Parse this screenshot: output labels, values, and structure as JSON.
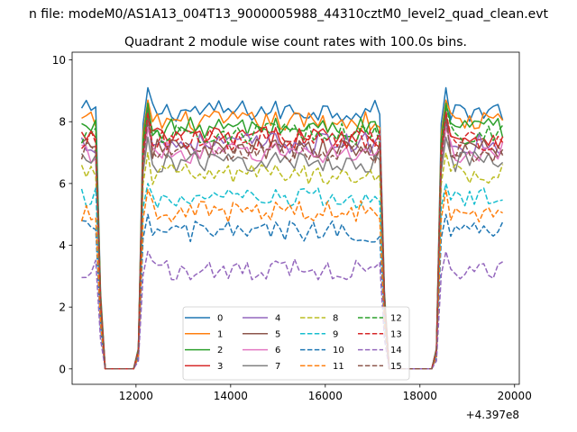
{
  "figure": {
    "suptitle": "n file: modeM0/AS1A13_004T13_9000005988_44310cztM0_level2_quad_clean.evt"
  },
  "chart_data": {
    "type": "line",
    "title": "Quadrant 2 module wise count rates with 100.0s bins.",
    "xlabel": "",
    "ylabel": "",
    "x_offset_label": "+4.397e8",
    "xlim": [
      10650,
      20100
    ],
    "ylim": [
      -0.5,
      10.25
    ],
    "xticks": [
      12000,
      14000,
      16000,
      18000,
      20000
    ],
    "xtick_labels": [
      "12000",
      "14000",
      "16000",
      "18000",
      "20000"
    ],
    "yticks": [
      0,
      2,
      4,
      6,
      8,
      10
    ],
    "ytick_labels": [
      "0",
      "2",
      "4",
      "6",
      "8",
      "10"
    ],
    "grid": false,
    "legend_position": "lower center",
    "legend_columns": 4,
    "x_start": 10850,
    "bin_width": 100,
    "segments": [
      {
        "x_from": 10850,
        "x_to": 11250,
        "kind": "data",
        "ramp_end": true
      },
      {
        "x_from": 11350,
        "x_to": 11950,
        "kind": "zero"
      },
      {
        "x_from": 12050,
        "x_to": 17250,
        "kind": "data",
        "ramp_start": true,
        "ramp_end": true
      },
      {
        "x_from": 17350,
        "x_to": 18250,
        "kind": "zero"
      },
      {
        "x_from": 18350,
        "x_to": 19750,
        "kind": "data",
        "ramp_start": true
      }
    ],
    "series": [
      {
        "name": "0",
        "color": "#1f77b4",
        "dash": "solid",
        "level": 8.35,
        "peak": 9.1
      },
      {
        "name": "1",
        "color": "#ff7f0e",
        "dash": "solid",
        "level": 8.0,
        "peak": 8.7
      },
      {
        "name": "2",
        "color": "#2ca02c",
        "dash": "solid",
        "level": 7.8,
        "peak": 8.6
      },
      {
        "name": "3",
        "color": "#d62728",
        "dash": "solid",
        "level": 7.5,
        "peak": 8.2
      },
      {
        "name": "4",
        "color": "#9467bd",
        "dash": "solid",
        "level": 7.3,
        "peak": 8.0
      },
      {
        "name": "5",
        "color": "#8c564b",
        "dash": "solid",
        "level": 7.1,
        "peak": 8.4
      },
      {
        "name": "6",
        "color": "#e377c2",
        "dash": "solid",
        "level": 7.0,
        "peak": 7.8
      },
      {
        "name": "7",
        "color": "#7f7f7f",
        "dash": "solid",
        "level": 6.7,
        "peak": 7.5
      },
      {
        "name": "8",
        "color": "#bcbd22",
        "dash": "dashed",
        "level": 6.3,
        "peak": 7.0
      },
      {
        "name": "9",
        "color": "#17becf",
        "dash": "dashed",
        "level": 5.5,
        "peak": 6.0
      },
      {
        "name": "10",
        "color": "#1f77b4",
        "dash": "dashed",
        "level": 4.45,
        "peak": 5.0
      },
      {
        "name": "11",
        "color": "#ff7f0e",
        "dash": "dashed",
        "level": 5.1,
        "peak": 5.8
      },
      {
        "name": "12",
        "color": "#2ca02c",
        "dash": "dashed",
        "level": 7.6,
        "peak": 8.5
      },
      {
        "name": "13",
        "color": "#d62728",
        "dash": "dashed",
        "level": 7.4,
        "peak": 8.3
      },
      {
        "name": "14",
        "color": "#9467bd",
        "dash": "dashed",
        "level": 3.2,
        "peak": 3.8
      },
      {
        "name": "15",
        "color": "#8c564b",
        "dash": "dashed",
        "level": 7.0,
        "peak": 8.1
      }
    ]
  }
}
